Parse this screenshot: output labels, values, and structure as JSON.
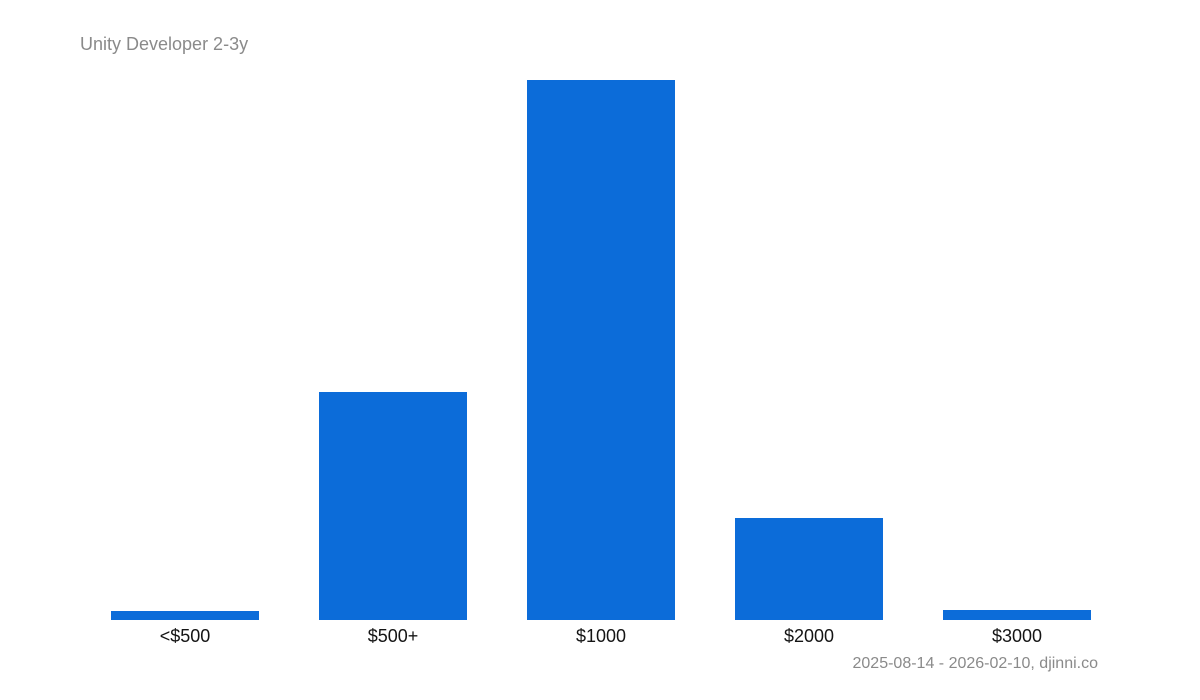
{
  "chart_data": {
    "type": "bar",
    "title": "Unity Developer 2-3y",
    "categories": [
      "<$500",
      "$500+",
      "$1000",
      "$2000",
      "$3000"
    ],
    "values": [
      9,
      228,
      540,
      102,
      10
    ],
    "xlabel": "",
    "ylabel": "",
    "ylim": [
      0,
      540
    ],
    "grid": false,
    "legend": false,
    "y_axis_shown": false,
    "footnote": "2025-08-14 - 2026-02-10, djinni.co",
    "colors": {
      "bar": "#0c6cd9",
      "title": "#8a8a8a",
      "tick_label": "#141414",
      "footnote": "#8a8a8a",
      "background": "#ffffff"
    }
  }
}
